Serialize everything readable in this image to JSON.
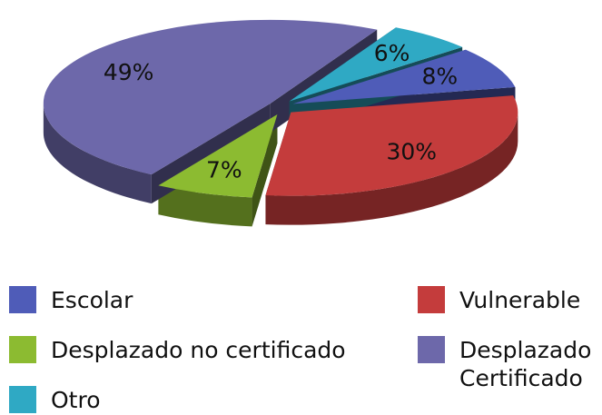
{
  "chart_data": {
    "type": "pie",
    "categories": [
      "Escolar",
      "Vulnerable",
      "Desplazado no certificado",
      "Desplazado Certificado",
      "Otro"
    ],
    "values": [
      8,
      30,
      7,
      49,
      6
    ],
    "value_labels": [
      "8%",
      "30%",
      "7%",
      "49%",
      "6%"
    ],
    "colors": [
      "#4f5cb8",
      "#c43c3c",
      "#8cbb31",
      "#6d68aa",
      "#2fa9c4"
    ],
    "legend": "bottom"
  }
}
